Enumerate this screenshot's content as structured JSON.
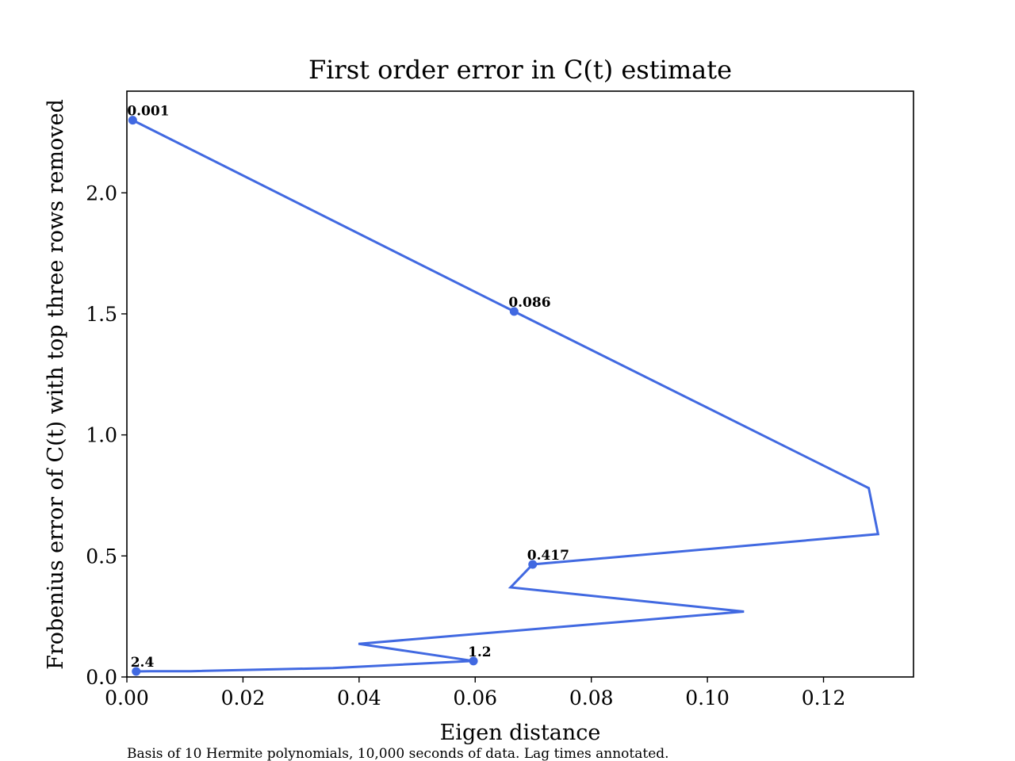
{
  "chart_data": {
    "type": "line",
    "title": "First order error in C(t) estimate",
    "xlabel": "Eigen distance",
    "ylabel": "Frobenius error of C(t) with top three rows removed",
    "caption": "Basis of 10 Hermite polynomials, 10,000 seconds of data. Lag times annotated.",
    "xlim": [
      0.0,
      0.1355
    ],
    "ylim": [
      0.0,
      2.42
    ],
    "xticks": [
      0.0,
      0.02,
      0.04,
      0.06,
      0.08,
      0.1,
      0.12
    ],
    "xtick_labels": [
      "0.00",
      "0.02",
      "0.04",
      "0.06",
      "0.08",
      "0.10",
      "0.12"
    ],
    "yticks": [
      0.0,
      0.5,
      1.0,
      1.5,
      2.0
    ],
    "ytick_labels": [
      "0.0",
      "0.5",
      "1.0",
      "1.5",
      "2.0"
    ],
    "grid": false,
    "color": "#4169E1",
    "series": [
      {
        "x": [
          0.001,
          0.0667,
          0.1278,
          0.1294,
          0.0699,
          0.0661,
          0.1063,
          0.0399,
          0.0597,
          0.0355,
          0.011,
          0.004,
          0.0016
        ],
        "y": [
          2.3,
          1.51,
          0.78,
          0.59,
          0.465,
          0.37,
          0.27,
          0.137,
          0.066,
          0.037,
          0.024,
          0.024,
          0.023
        ]
      }
    ],
    "annotations": [
      {
        "label": "0.001",
        "x": 0.001,
        "y": 2.3
      },
      {
        "label": "0.086",
        "x": 0.0667,
        "y": 1.51
      },
      {
        "label": "0.417",
        "x": 0.0699,
        "y": 0.465
      },
      {
        "label": "1.2",
        "x": 0.0597,
        "y": 0.066
      },
      {
        "label": "2.4",
        "x": 0.0016,
        "y": 0.023
      }
    ]
  }
}
